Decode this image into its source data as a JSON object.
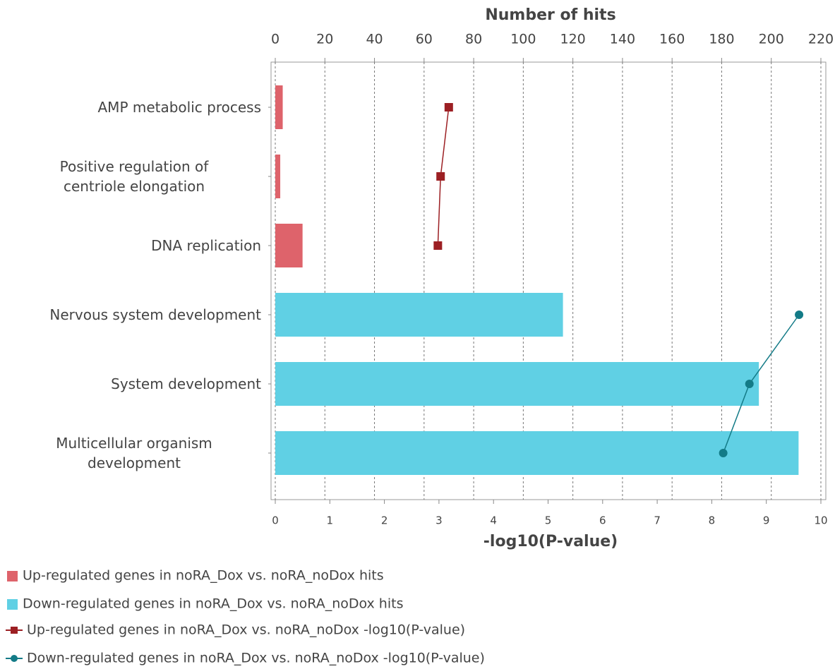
{
  "chart_data": {
    "type": "bar",
    "orientation": "horizontal",
    "categories": [
      "AMP metabolic process",
      "Positive regulation of\ncentriole elongation",
      "DNA replication",
      "Nervous system development",
      "System development",
      "Multicellular organism\ndevelopment"
    ],
    "xlabel": "Number of hits",
    "xlim": [
      0,
      220
    ],
    "xticks": [
      0,
      20,
      40,
      60,
      80,
      100,
      120,
      140,
      160,
      180,
      200,
      220
    ],
    "x2label": "-log10(P-value)",
    "x2lim": [
      0,
      10
    ],
    "x2ticks": [
      0,
      1,
      2,
      3,
      4,
      5,
      6,
      7,
      8,
      9,
      10
    ],
    "grid": true,
    "legend": "bottom",
    "series": [
      {
        "name": "Up-regulated genes in noRA_Dox vs. noRA_noDox hits",
        "type": "bar",
        "color": "#de636b",
        "values": [
          3,
          2,
          11,
          null,
          null,
          null
        ]
      },
      {
        "name": "Down-regulated genes in noRA_Dox vs. noRA_noDox hits",
        "type": "bar",
        "color": "#60d0e4",
        "values": [
          null,
          null,
          null,
          116,
          195,
          211
        ]
      },
      {
        "name": "Up-regulated genes in noRA_Dox vs. noRA_noDox -log10(P-value)",
        "type": "line",
        "axis": "x2",
        "marker": "square",
        "color": "#9c1f23",
        "values": [
          3.18,
          3.03,
          2.98,
          null,
          null,
          null
        ]
      },
      {
        "name": "Down-regulated genes in noRA_Dox vs. noRA_noDox -log10(P-value)",
        "type": "line",
        "axis": "x2",
        "marker": "circle",
        "color": "#137b87",
        "values": [
          null,
          null,
          null,
          9.6,
          8.69,
          8.21
        ]
      }
    ]
  }
}
